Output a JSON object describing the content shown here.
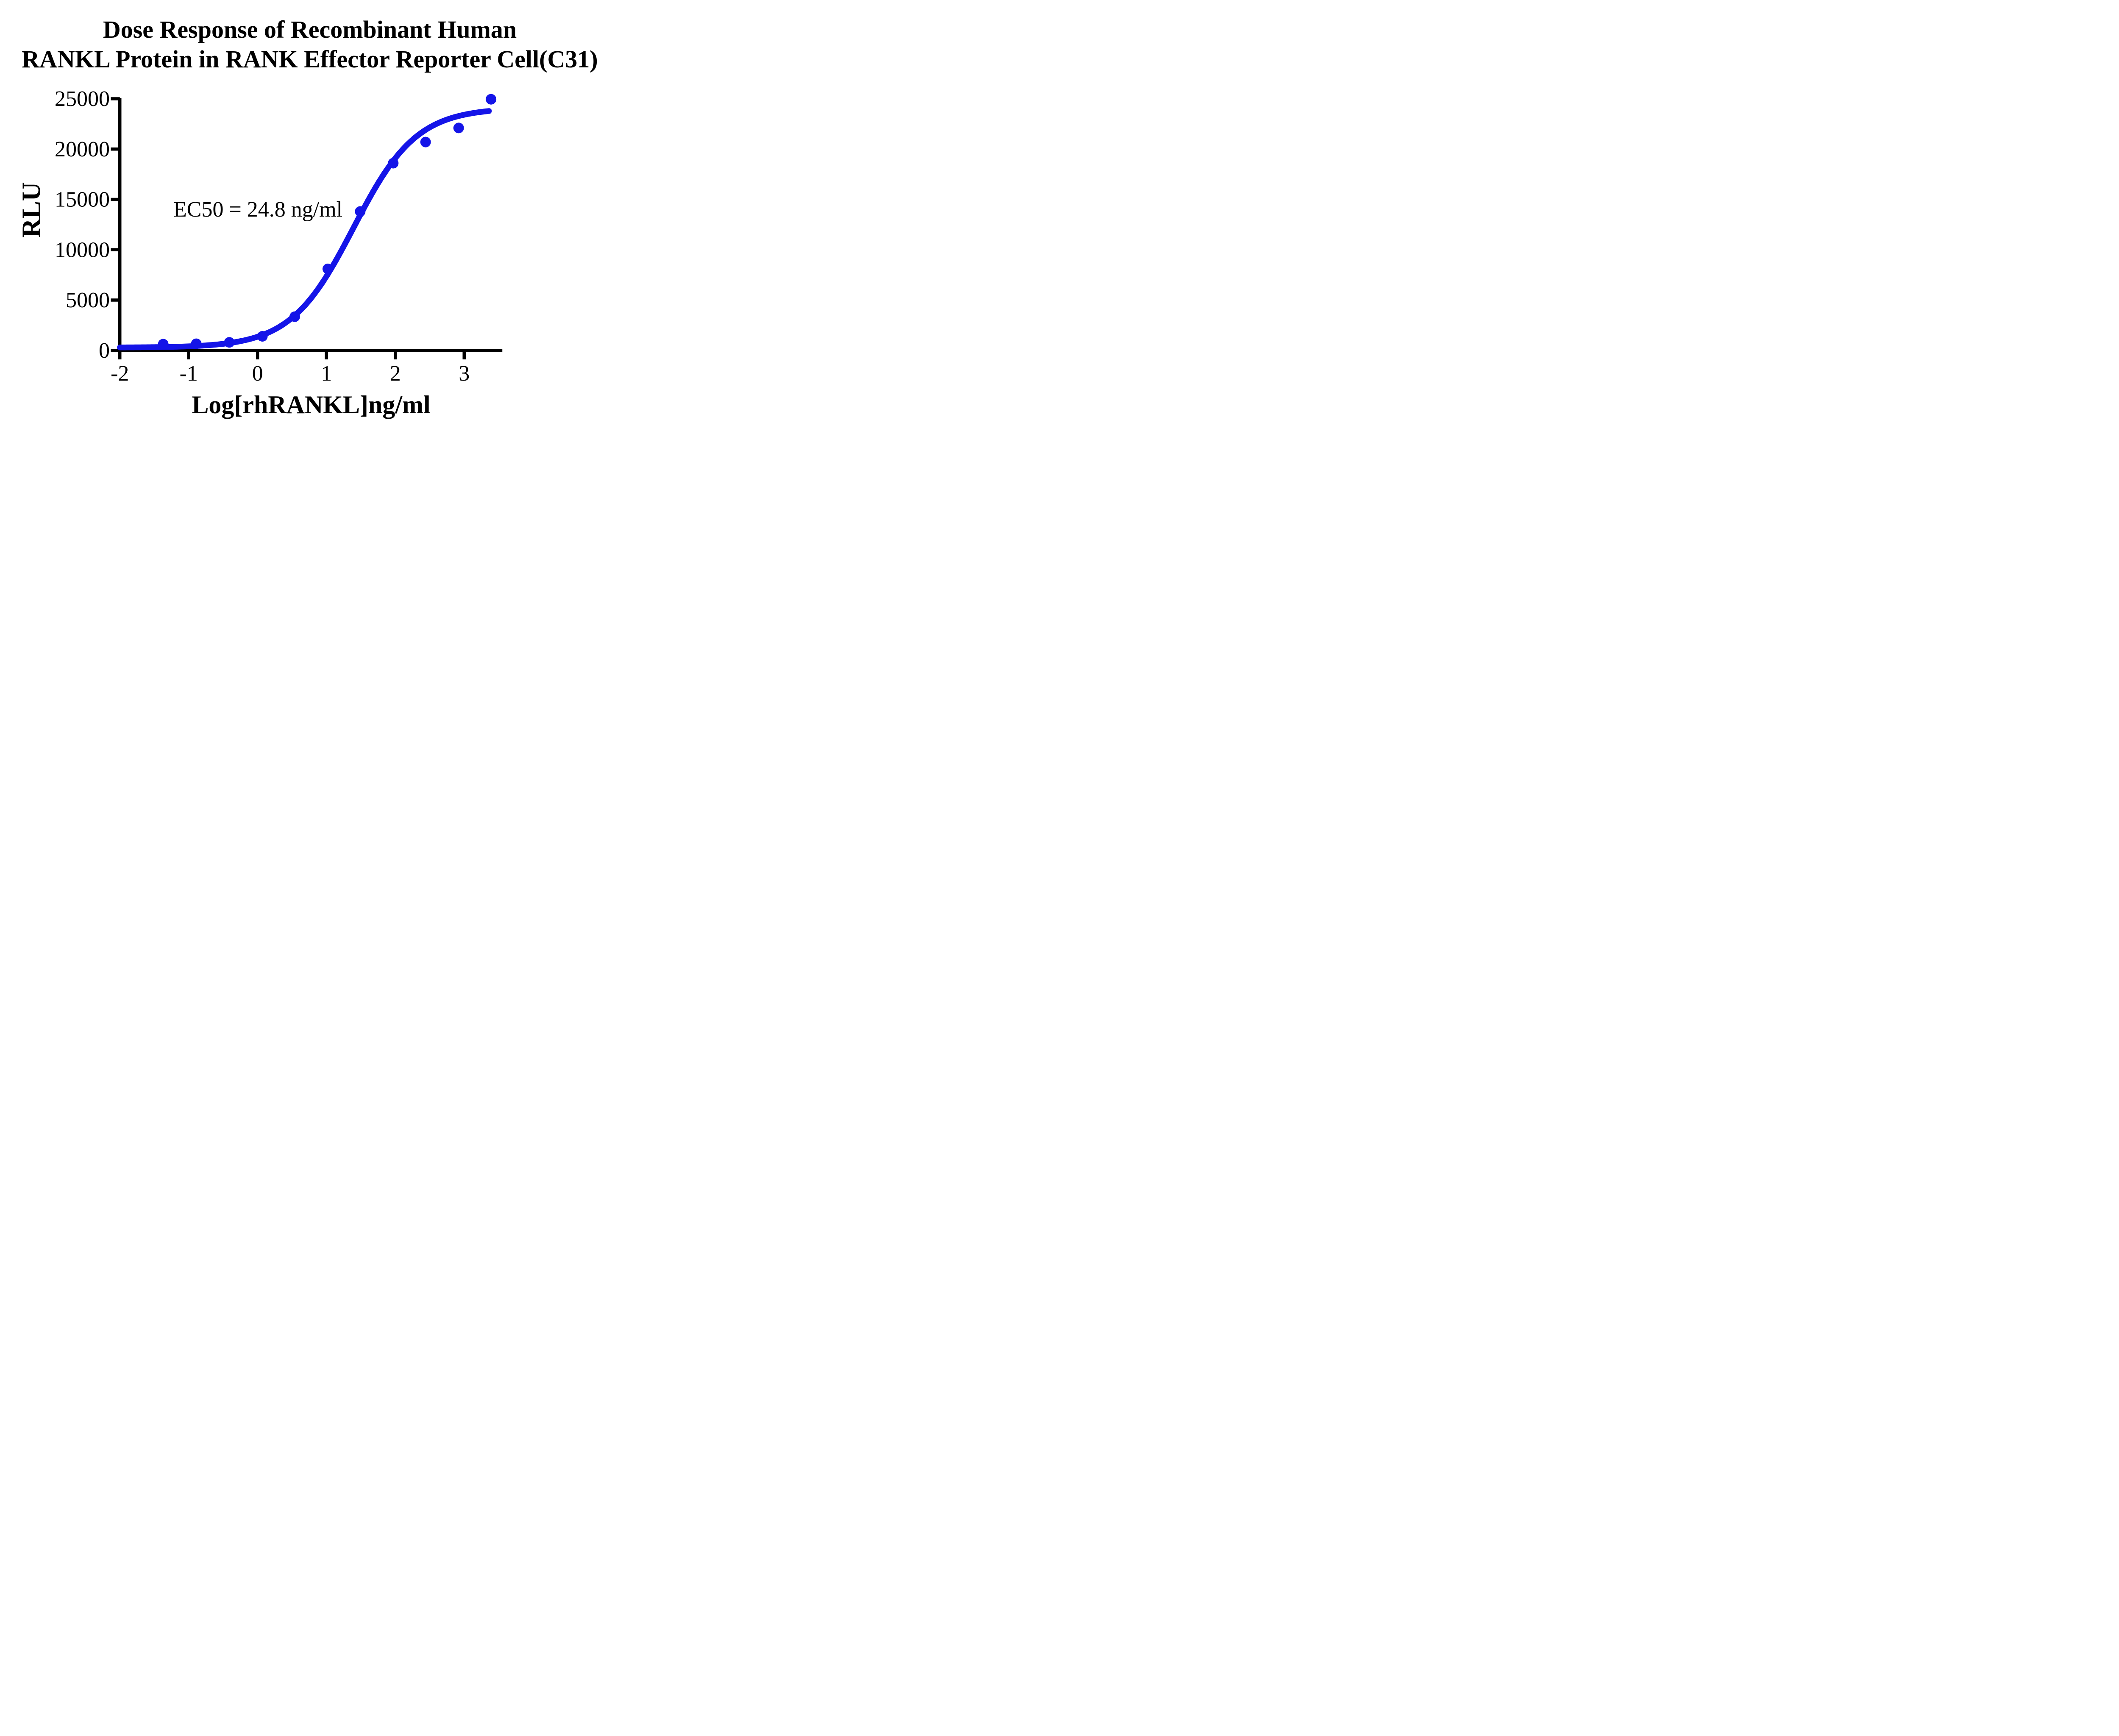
{
  "title": {
    "line1": "Dose Response of Recombinant Human",
    "line2": "RANKL Protein in RANK Effector Reporter Cell(C31)"
  },
  "chart_data": {
    "type": "scatter",
    "title": "Dose Response of Recombinant Human RANKL Protein in RANK Effector Reporter Cell(C31)",
    "xlabel": "Log[rhRANKL]ng/ml",
    "ylabel": "RLU",
    "annotation": "EC50 = 24.8 ng/ml",
    "ec50_ng_ml": 24.8,
    "xlim": [
      -2,
      3.56
    ],
    "ylim": [
      0,
      25000
    ],
    "x_ticks": [
      -2,
      -1,
      0,
      1,
      2,
      3
    ],
    "y_ticks": [
      0,
      5000,
      10000,
      15000,
      20000,
      25000
    ],
    "grid": false,
    "legend": "none",
    "series": [
      {
        "name": "rhRANKL",
        "color": "#1414e8",
        "points": [
          [
            -1.37,
            620
          ],
          [
            -0.89,
            660
          ],
          [
            -0.41,
            800
          ],
          [
            0.07,
            1400
          ],
          [
            0.54,
            3350
          ],
          [
            1.02,
            8100
          ],
          [
            1.49,
            13800
          ],
          [
            1.97,
            18600
          ],
          [
            2.44,
            20700
          ],
          [
            2.92,
            22100
          ],
          [
            3.39,
            24950
          ]
        ]
      }
    ],
    "curve_fit": {
      "model": "4PL",
      "bottom": 280,
      "top": 24100,
      "log_ec50": 1.394,
      "hill": 0.95,
      "x_start": -2,
      "x_end": 3.36
    }
  },
  "colors": {
    "curve": "#1414e8",
    "axis": "#000000",
    "text": "#000000",
    "background": "#ffffff"
  }
}
